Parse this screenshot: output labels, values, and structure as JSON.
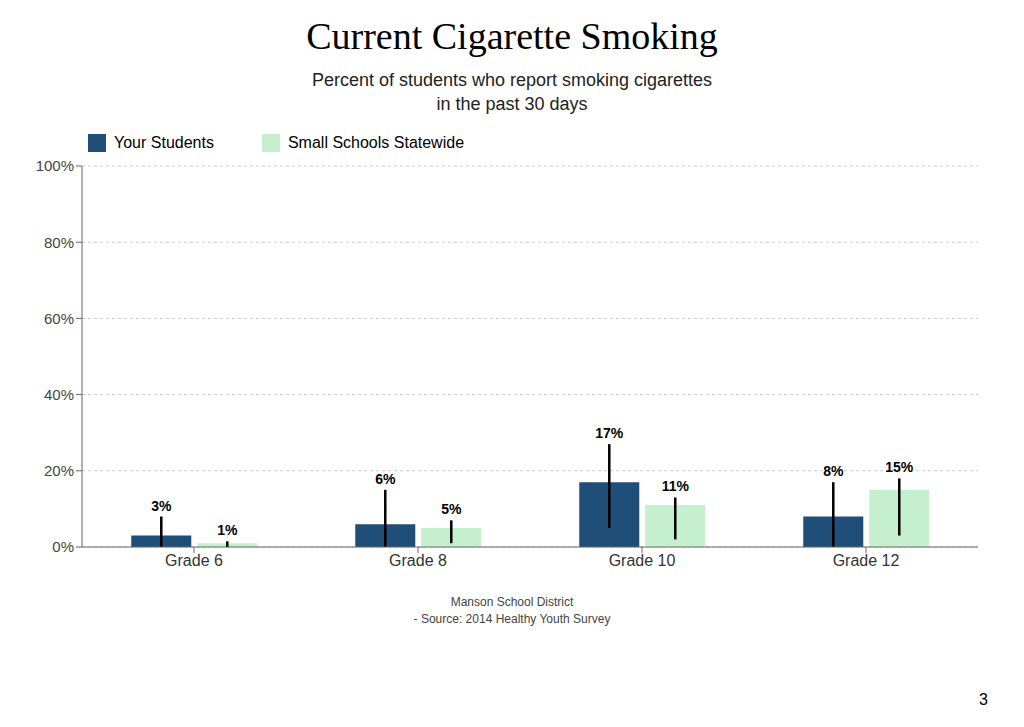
{
  "chart_data": {
    "type": "bar",
    "title": "Current Cigarette Smoking",
    "subtitle": "Percent of students who report smoking cigarettes\nin the past 30 days",
    "categories": [
      "Grade 6",
      "Grade 8",
      "Grade 10",
      "Grade 12"
    ],
    "series": [
      {
        "name": "Your Students",
        "color": "#1f4e79",
        "values": [
          3,
          6,
          17,
          8
        ],
        "value_labels": [
          "3%",
          "6%",
          "17%",
          "8%"
        ],
        "error_upper": [
          5,
          9,
          10,
          9
        ],
        "error_lower": [
          3,
          6,
          12,
          8
        ]
      },
      {
        "name": "Small Schools Statewide",
        "color": "#c6efce",
        "values": [
          1,
          5,
          11,
          15
        ],
        "value_labels": [
          "1%",
          "5%",
          "11%",
          "15%"
        ],
        "error_upper": [
          0.5,
          2,
          2,
          3
        ],
        "error_lower": [
          1,
          4,
          9,
          12
        ]
      }
    ],
    "ylim": [
      0,
      100
    ],
    "yticks": [
      {
        "value": 0,
        "label": "0%"
      },
      {
        "value": 20,
        "label": "20%"
      },
      {
        "value": 40,
        "label": "40%"
      },
      {
        "value": 60,
        "label": "60%"
      },
      {
        "value": 80,
        "label": "80%"
      },
      {
        "value": 100,
        "label": "100%"
      }
    ],
    "grid": true,
    "legend": "top left",
    "data_labels": true,
    "annotations": [
      "Manson School District\n- Source: 2014 Healthy Youth Survey",
      "3"
    ]
  }
}
